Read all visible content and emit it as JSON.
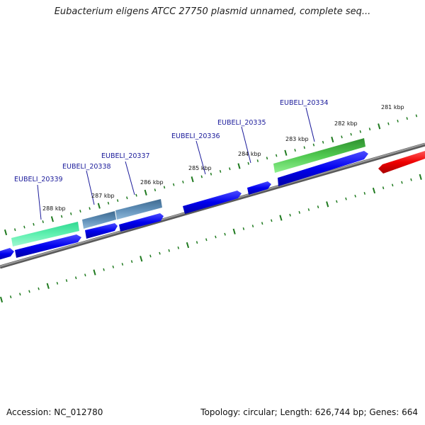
{
  "title": "Eubacterium eligens ATCC 27750 plasmid unnamed, complete seq...",
  "footer": {
    "accession": "Accession: NC_012780",
    "summary": "Topology: circular; Length: 626,744 bp; Genes: 664"
  },
  "colors": {
    "backbone": "#808080",
    "cds": "#0000ee",
    "cds_end": "#ee0000",
    "tick": "#1f7a1f",
    "label_line": "#1a1a9a"
  },
  "ticks": [
    "281 kbp",
    "282 kbp",
    "283 kbp",
    "284 kbp",
    "285 kbp",
    "286 kbp",
    "287 kbp",
    "288 kbp"
  ],
  "gene_labels": [
    "EUBELI_20334",
    "EUBELI_20335",
    "EUBELI_20336",
    "EUBELI_20337",
    "EUBELI_20338",
    "EUBELI_20339"
  ]
}
